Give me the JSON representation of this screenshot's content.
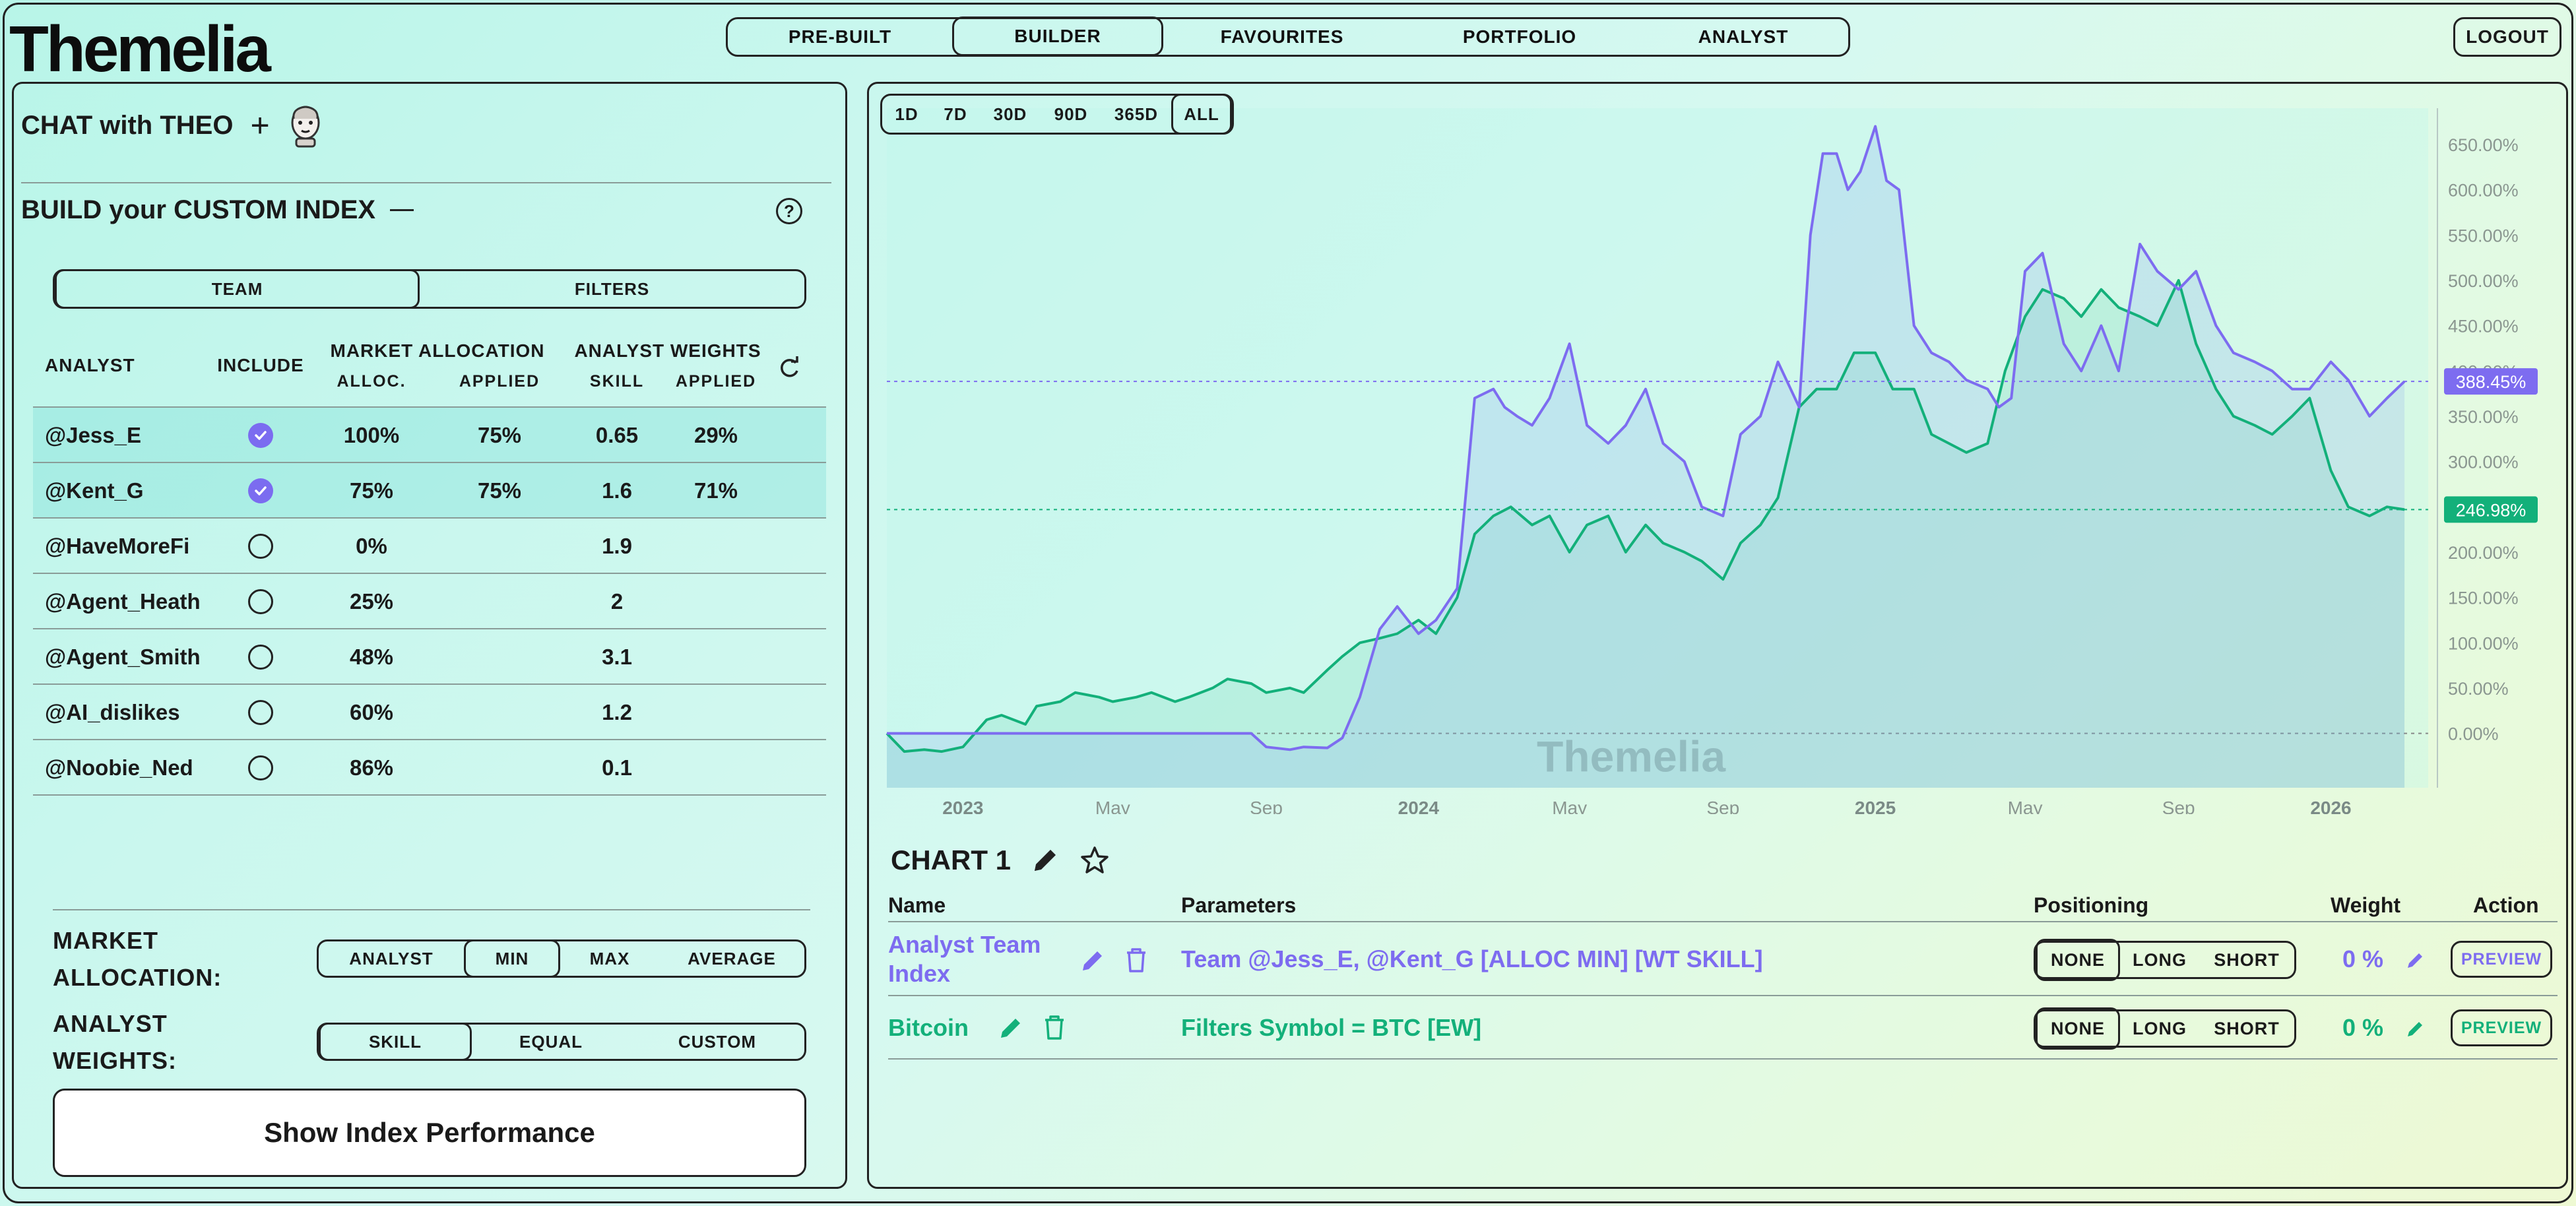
{
  "app": {
    "logo": "Themelia",
    "nav": [
      "PRE-BUILT",
      "BUILDER",
      "FAVOURITES",
      "PORTFOLIO",
      "ANALYST"
    ],
    "active_nav": "BUILDER",
    "logout": "LOGOUT"
  },
  "left": {
    "chat_title": "CHAT with THEO",
    "chat_add": "+",
    "build_title": "BUILD your CUSTOM INDEX",
    "help": "?",
    "tabs": [
      "TEAM",
      "FILTERS"
    ],
    "table": {
      "col_analyst": "ANALYST",
      "col_include": "INCLUDE",
      "col_market_alloc": "MARKET ALLOCATION",
      "col_alloc": "ALLOC.",
      "col_applied": "APPLIED",
      "col_weights": "ANALYST WEIGHTS",
      "col_skill": "SKILL",
      "col_w_applied": "APPLIED",
      "rows": [
        {
          "analyst": "@Jess_E",
          "include": true,
          "alloc": "100%",
          "applied": "75%",
          "skill": "0.65",
          "w_applied": "29%"
        },
        {
          "analyst": "@Kent_G",
          "include": true,
          "alloc": "75%",
          "applied": "75%",
          "skill": "1.6",
          "w_applied": "71%"
        },
        {
          "analyst": "@HaveMoreFi",
          "include": false,
          "alloc": "0%",
          "applied": "",
          "skill": "1.9",
          "w_applied": ""
        },
        {
          "analyst": "@Agent_Heath",
          "include": false,
          "alloc": "25%",
          "applied": "",
          "skill": "2",
          "w_applied": ""
        },
        {
          "analyst": "@Agent_Smith",
          "include": false,
          "alloc": "48%",
          "applied": "",
          "skill": "3.1",
          "w_applied": ""
        },
        {
          "analyst": "@AI_dislikes",
          "include": false,
          "alloc": "60%",
          "applied": "",
          "skill": "1.2",
          "w_applied": ""
        },
        {
          "analyst": "@Noobie_Ned",
          "include": false,
          "alloc": "86%",
          "applied": "",
          "skill": "0.1",
          "w_applied": ""
        }
      ]
    },
    "market_allocation_label_1": "MARKET",
    "market_allocation_label_2": "ALLOCATION:",
    "market_allocation_options": [
      "ANALYST",
      "MIN",
      "MAX",
      "AVERAGE"
    ],
    "market_allocation_selected": "MIN",
    "analyst_weights_label_1": "ANALYST",
    "analyst_weights_label_2": "WEIGHTS:",
    "analyst_weights_options": [
      "SKILL",
      "EQUAL",
      "CUSTOM"
    ],
    "analyst_weights_selected": "SKILL",
    "show_button": "Show Index Performance"
  },
  "chart_controls": {
    "ranges": [
      "1D",
      "7D",
      "30D",
      "90D",
      "365D",
      "ALL"
    ],
    "selected_range": "ALL",
    "watermark": "Themelia",
    "title": "CHART 1"
  },
  "chart_data": {
    "type": "area",
    "x_ticks": [
      "2023",
      "May",
      "Sep",
      "2024",
      "May",
      "Sep",
      "2025",
      "May",
      "Sep",
      "2026"
    ],
    "y_ticks": [
      "650.00%",
      "600.00%",
      "550.00%",
      "500.00%",
      "450.00%",
      "400.00%",
      "350.00%",
      "300.00%",
      "250.00%",
      "200.00%",
      "150.00%",
      "100.00%",
      "50.00%",
      "0.00%"
    ],
    "ylim": [
      -60,
      690
    ],
    "x_range": [
      "2022-11",
      "2026-03"
    ],
    "series": [
      {
        "name": "Analyst Team Index",
        "color": "#7d6cf0",
        "last_label": "388.45%",
        "x": [
          "2022-11-01",
          "2022-11-15",
          "2022-12-01",
          "2022-12-15",
          "2023-01-01",
          "2023-02-01",
          "2023-03-01",
          "2023-04-01",
          "2023-05-01",
          "2023-06-01",
          "2023-07-01",
          "2023-08-01",
          "2023-08-20",
          "2023-09-01",
          "2023-09-20",
          "2023-10-01",
          "2023-10-20",
          "2023-11-01",
          "2023-11-15",
          "2023-12-01",
          "2023-12-15",
          "2024-01-01",
          "2024-01-15",
          "2024-02-01",
          "2024-02-15",
          "2024-03-01",
          "2024-03-10",
          "2024-03-20",
          "2024-04-01",
          "2024-04-15",
          "2024-05-01",
          "2024-05-15",
          "2024-06-01",
          "2024-06-15",
          "2024-07-01",
          "2024-07-15",
          "2024-08-01",
          "2024-08-15",
          "2024-09-01",
          "2024-09-15",
          "2024-10-01",
          "2024-10-15",
          "2024-11-01",
          "2024-11-10",
          "2024-11-20",
          "2024-12-01",
          "2024-12-10",
          "2024-12-20",
          "2025-01-01",
          "2025-01-10",
          "2025-01-20",
          "2025-02-01",
          "2025-02-15",
          "2025-03-01",
          "2025-03-15",
          "2025-04-01",
          "2025-04-10",
          "2025-04-20",
          "2025-05-01",
          "2025-05-15",
          "2025-06-01",
          "2025-06-15",
          "2025-07-01",
          "2025-07-15",
          "2025-08-01",
          "2025-08-15",
          "2025-09-01",
          "2025-09-15",
          "2025-10-01",
          "2025-10-15",
          "2025-11-01",
          "2025-11-15",
          "2025-12-01",
          "2025-12-15",
          "2026-01-01",
          "2026-01-15",
          "2026-02-01",
          "2026-02-15",
          "2026-03-01"
        ],
        "values": [
          0,
          0,
          0,
          0,
          0,
          0,
          0,
          0,
          0,
          0,
          0,
          0,
          0,
          -15,
          -18,
          -15,
          -16,
          -5,
          40,
          115,
          140,
          110,
          125,
          160,
          370,
          380,
          360,
          350,
          340,
          370,
          430,
          340,
          320,
          340,
          380,
          320,
          300,
          250,
          240,
          330,
          350,
          410,
          360,
          550,
          640,
          640,
          600,
          620,
          670,
          610,
          600,
          450,
          420,
          410,
          390,
          380,
          360,
          370,
          510,
          530,
          430,
          400,
          450,
          400,
          540,
          510,
          490,
          510,
          450,
          420,
          410,
          400,
          380,
          380,
          410,
          390,
          350,
          370,
          388.45
        ]
      },
      {
        "name": "Bitcoin",
        "color": "#13b07a",
        "last_label": "246.98%",
        "x": [
          "2022-11-01",
          "2022-11-15",
          "2022-12-01",
          "2022-12-15",
          "2023-01-01",
          "2023-01-20",
          "2023-02-01",
          "2023-02-20",
          "2023-03-01",
          "2023-03-20",
          "2023-04-01",
          "2023-04-20",
          "2023-05-01",
          "2023-05-20",
          "2023-06-01",
          "2023-06-20",
          "2023-07-01",
          "2023-07-20",
          "2023-08-01",
          "2023-08-20",
          "2023-09-01",
          "2023-09-20",
          "2023-10-01",
          "2023-10-20",
          "2023-11-01",
          "2023-11-15",
          "2023-12-01",
          "2023-12-15",
          "2024-01-01",
          "2024-01-15",
          "2024-02-01",
          "2024-02-15",
          "2024-03-01",
          "2024-03-15",
          "2024-04-01",
          "2024-04-15",
          "2024-05-01",
          "2024-05-15",
          "2024-06-01",
          "2024-06-15",
          "2024-07-01",
          "2024-07-15",
          "2024-08-01",
          "2024-08-15",
          "2024-09-01",
          "2024-09-15",
          "2024-10-01",
          "2024-10-15",
          "2024-11-01",
          "2024-11-15",
          "2024-12-01",
          "2024-12-15",
          "2025-01-01",
          "2025-01-15",
          "2025-02-01",
          "2025-02-15",
          "2025-03-01",
          "2025-03-15",
          "2025-04-01",
          "2025-04-15",
          "2025-05-01",
          "2025-05-15",
          "2025-06-01",
          "2025-06-15",
          "2025-07-01",
          "2025-07-15",
          "2025-08-01",
          "2025-08-15",
          "2025-09-01",
          "2025-09-15",
          "2025-10-01",
          "2025-10-15",
          "2025-11-01",
          "2025-11-15",
          "2025-12-01",
          "2025-12-15",
          "2026-01-01",
          "2026-01-15",
          "2026-02-01",
          "2026-02-15",
          "2026-03-01"
        ],
        "values": [
          0,
          -20,
          -18,
          -20,
          -15,
          15,
          20,
          10,
          30,
          35,
          45,
          40,
          35,
          40,
          45,
          35,
          40,
          50,
          60,
          55,
          45,
          50,
          45,
          70,
          85,
          100,
          105,
          110,
          125,
          110,
          150,
          220,
          240,
          250,
          230,
          240,
          200,
          230,
          240,
          200,
          230,
          210,
          200,
          190,
          170,
          210,
          230,
          260,
          360,
          380,
          380,
          420,
          420,
          380,
          380,
          330,
          320,
          310,
          320,
          400,
          460,
          490,
          480,
          460,
          490,
          470,
          460,
          450,
          500,
          430,
          380,
          350,
          340,
          330,
          350,
          370,
          290,
          250,
          240,
          250,
          246.98
        ]
      }
    ]
  },
  "positions": {
    "head_name": "Name",
    "head_params": "Parameters",
    "head_positioning": "Positioning",
    "head_weight": "Weight",
    "head_action": "Action",
    "rows": [
      {
        "name_1": "Analyst Team",
        "name_2": "Index",
        "param_key": "Team",
        "param_value": "@Jess_E, @Kent_G [ALLOC MIN] [WT SKILL]",
        "positions": [
          "NONE",
          "LONG",
          "SHORT"
        ],
        "selected": "NONE",
        "weight": "0 %",
        "action": "PREVIEW",
        "color": "#7d6cf0"
      },
      {
        "name_1": "Bitcoin",
        "name_2": "",
        "param_key": "Filters",
        "param_value": "Symbol = BTC [EW]",
        "positions": [
          "NONE",
          "LONG",
          "SHORT"
        ],
        "selected": "NONE",
        "weight": "0 %",
        "action": "PREVIEW",
        "color": "#13b07a"
      }
    ]
  }
}
